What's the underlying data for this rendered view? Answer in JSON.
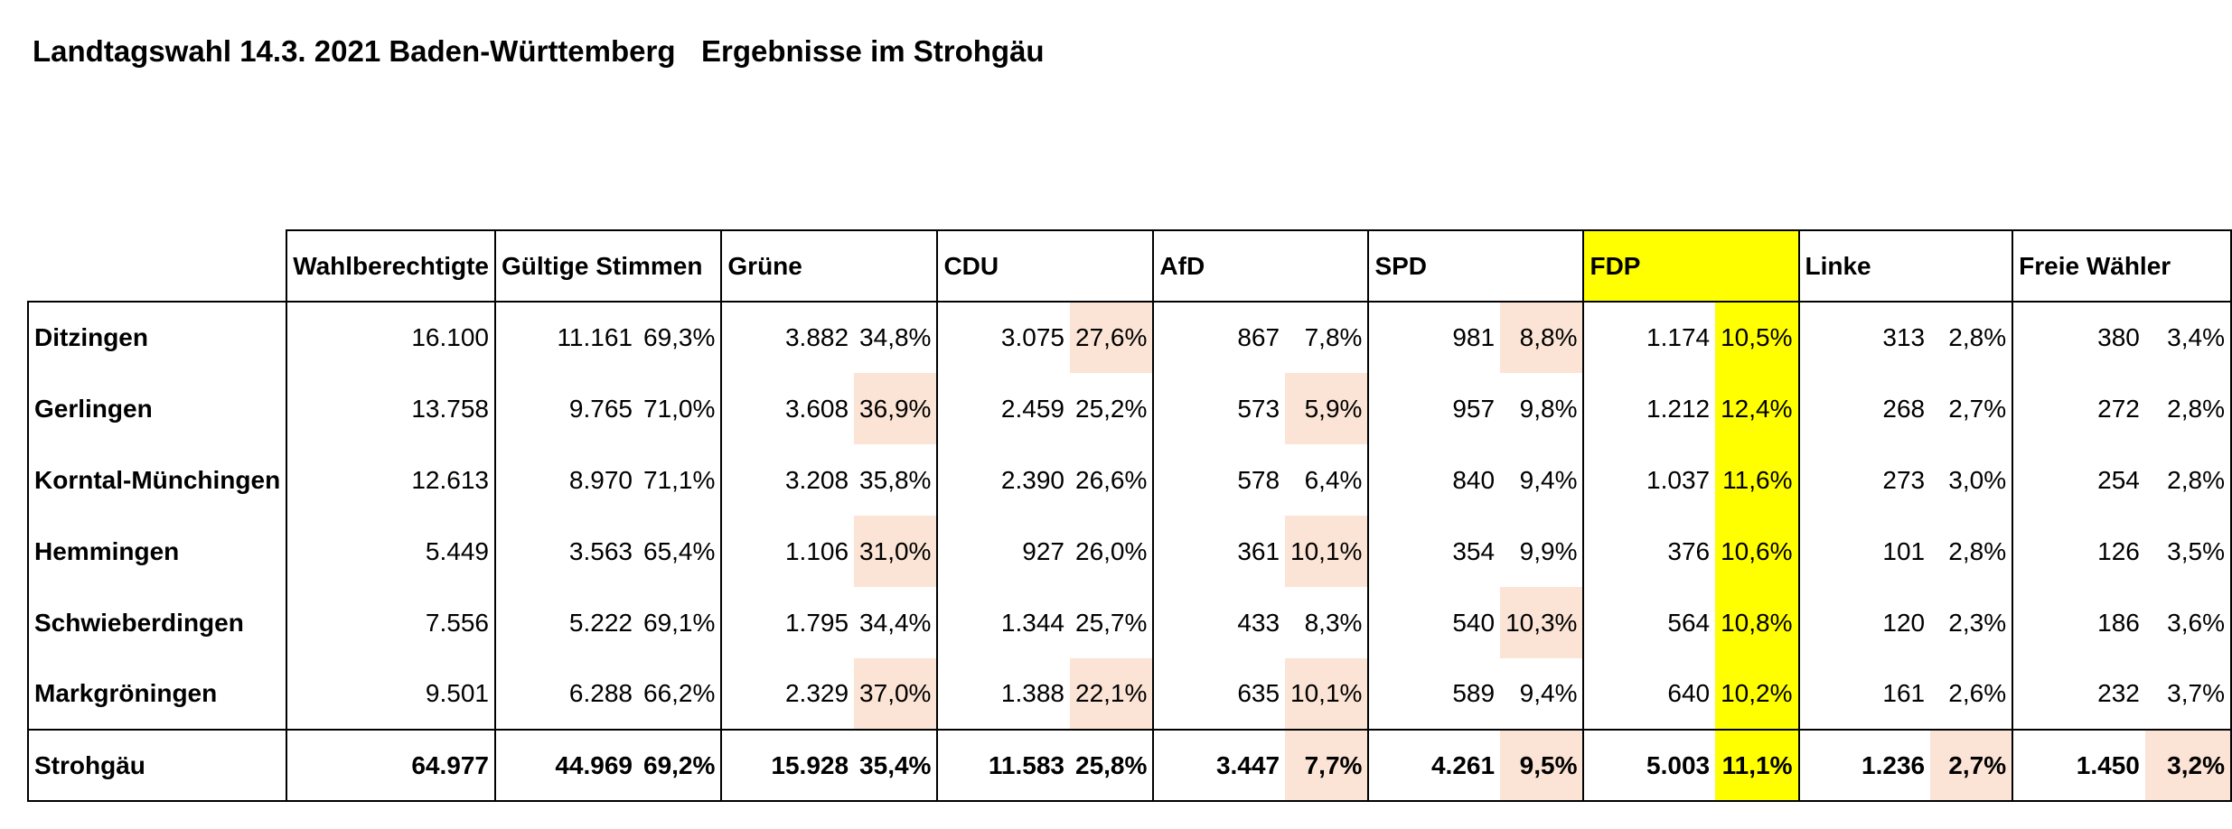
{
  "header": {
    "title": "Landtagswahl 14.3. 2021 Baden-Württemberg",
    "subtitle": "Ergebnisse im Strohgäu"
  },
  "table": {
    "columns": [
      "Wahlberechtigte",
      "Gültige Stimmen",
      "Grüne",
      "CDU",
      "AfD",
      "SPD",
      "FDP",
      "Linke",
      "Freie Wähler"
    ],
    "rows": [
      {
        "name": "Ditzingen",
        "wahlberechtigte": "16.100",
        "gueltig": "11.161",
        "gueltig_pct": "69,3%",
        "gruene": "3.882",
        "gruene_pct": "34,8%",
        "cdu": "3.075",
        "cdu_pct": "27,6%",
        "afd": "867",
        "afd_pct": "7,8%",
        "spd": "981",
        "spd_pct": "8,8%",
        "fdp": "1.174",
        "fdp_pct": "10,5%",
        "linke": "313",
        "linke_pct": "2,8%",
        "fw": "380",
        "fw_pct": "3,4%"
      },
      {
        "name": "Gerlingen",
        "wahlberechtigte": "13.758",
        "gueltig": "9.765",
        "gueltig_pct": "71,0%",
        "gruene": "3.608",
        "gruene_pct": "36,9%",
        "cdu": "2.459",
        "cdu_pct": "25,2%",
        "afd": "573",
        "afd_pct": "5,9%",
        "spd": "957",
        "spd_pct": "9,8%",
        "fdp": "1.212",
        "fdp_pct": "12,4%",
        "linke": "268",
        "linke_pct": "2,7%",
        "fw": "272",
        "fw_pct": "2,8%"
      },
      {
        "name": "Korntal-Münchingen",
        "wahlberechtigte": "12.613",
        "gueltig": "8.970",
        "gueltig_pct": "71,1%",
        "gruene": "3.208",
        "gruene_pct": "35,8%",
        "cdu": "2.390",
        "cdu_pct": "26,6%",
        "afd": "578",
        "afd_pct": "6,4%",
        "spd": "840",
        "spd_pct": "9,4%",
        "fdp": "1.037",
        "fdp_pct": "11,6%",
        "linke": "273",
        "linke_pct": "3,0%",
        "fw": "254",
        "fw_pct": "2,8%"
      },
      {
        "name": "Hemmingen",
        "wahlberechtigte": "5.449",
        "gueltig": "3.563",
        "gueltig_pct": "65,4%",
        "gruene": "1.106",
        "gruene_pct": "31,0%",
        "cdu": "927",
        "cdu_pct": "26,0%",
        "afd": "361",
        "afd_pct": "10,1%",
        "spd": "354",
        "spd_pct": "9,9%",
        "fdp": "376",
        "fdp_pct": "10,6%",
        "linke": "101",
        "linke_pct": "2,8%",
        "fw": "126",
        "fw_pct": "3,5%"
      },
      {
        "name": "Schwieberdingen",
        "wahlberechtigte": "7.556",
        "gueltig": "5.222",
        "gueltig_pct": "69,1%",
        "gruene": "1.795",
        "gruene_pct": "34,4%",
        "cdu": "1.344",
        "cdu_pct": "25,7%",
        "afd": "433",
        "afd_pct": "8,3%",
        "spd": "540",
        "spd_pct": "10,3%",
        "fdp": "564",
        "fdp_pct": "10,8%",
        "linke": "120",
        "linke_pct": "2,3%",
        "fw": "186",
        "fw_pct": "3,6%"
      },
      {
        "name": "Markgröningen",
        "wahlberechtigte": "9.501",
        "gueltig": "6.288",
        "gueltig_pct": "66,2%",
        "gruene": "2.329",
        "gruene_pct": "37,0%",
        "cdu": "1.388",
        "cdu_pct": "22,1%",
        "afd": "635",
        "afd_pct": "10,1%",
        "spd": "589",
        "spd_pct": "9,4%",
        "fdp": "640",
        "fdp_pct": "10,2%",
        "linke": "161",
        "linke_pct": "2,6%",
        "fw": "232",
        "fw_pct": "3,7%"
      }
    ],
    "total": {
      "name": "Strohgäu",
      "wahlberechtigte": "64.977",
      "gueltig": "44.969",
      "gueltig_pct": "69,2%",
      "gruene": "15.928",
      "gruene_pct": "35,4%",
      "cdu": "11.583",
      "cdu_pct": "25,8%",
      "afd": "3.447",
      "afd_pct": "7,7%",
      "spd": "4.261",
      "spd_pct": "9,5%",
      "fdp": "5.003",
      "fdp_pct": "11,1%",
      "linke": "1.236",
      "linke_pct": "2,7%",
      "fw": "1.450",
      "fw_pct": "3,2%"
    }
  },
  "colors": {
    "highlight": "#fbe4d5",
    "fdp": "#ffff00"
  }
}
